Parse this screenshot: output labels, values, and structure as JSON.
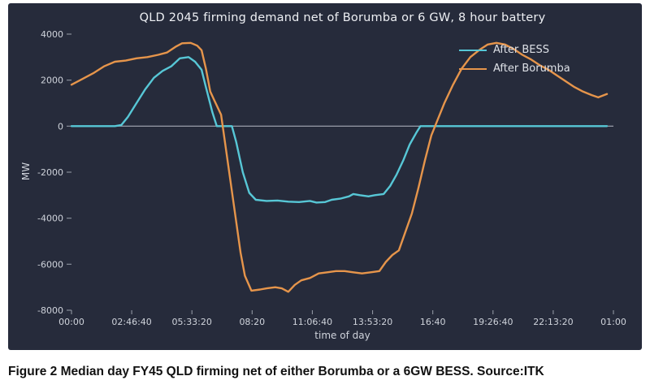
{
  "figure": {
    "caption": "Figure 2 Median day FY45 QLD firming net of either Borumba or a 6GW BESS. Source:ITK"
  },
  "chart_data": {
    "type": "line",
    "title": "QLD 2045 firming demand net of Borumba or 6 GW, 8 hour battery",
    "xlabel": "time of day",
    "ylabel": "MW",
    "xlim_hours": [
      0,
      25
    ],
    "ylim": [
      -8000,
      4000
    ],
    "background": "#262b3b",
    "text_color": "#cfd3db",
    "axis_color": "#9aa0ab",
    "zero_line_color": "#a7abb5",
    "grid": "off",
    "legend_position": "top-right",
    "y_ticks": [
      4000,
      2000,
      0,
      -2000,
      -4000,
      -6000,
      -8000
    ],
    "x_ticks": [
      {
        "hours": 0,
        "label": "00:00"
      },
      {
        "hours": 2.77778,
        "label": "02:46:40"
      },
      {
        "hours": 5.55556,
        "label": "05:33:20"
      },
      {
        "hours": 8.33333,
        "label": "08:20"
      },
      {
        "hours": 11.11111,
        "label": "11:06:40"
      },
      {
        "hours": 13.88889,
        "label": "13:53:20"
      },
      {
        "hours": 16.66667,
        "label": "16:40"
      },
      {
        "hours": 19.44444,
        "label": "19:26:40"
      },
      {
        "hours": 22.22222,
        "label": "22:13:20"
      },
      {
        "hours": 25,
        "label": "01:00"
      }
    ],
    "series": [
      {
        "name": "After BESS",
        "color": "#57c7d6",
        "points": [
          [
            0,
            0
          ],
          [
            0.5,
            0
          ],
          [
            1,
            0
          ],
          [
            1.5,
            0
          ],
          [
            2,
            0
          ],
          [
            2.3,
            50
          ],
          [
            2.6,
            400
          ],
          [
            3,
            1000
          ],
          [
            3.4,
            1600
          ],
          [
            3.8,
            2100
          ],
          [
            4.2,
            2400
          ],
          [
            4.6,
            2600
          ],
          [
            5,
            2950
          ],
          [
            5.4,
            3000
          ],
          [
            5.7,
            2800
          ],
          [
            6,
            2450
          ],
          [
            6.2,
            1700
          ],
          [
            6.5,
            600
          ],
          [
            6.7,
            0
          ],
          [
            7,
            0
          ],
          [
            7.4,
            0
          ],
          [
            7.6,
            -700
          ],
          [
            7.9,
            -2000
          ],
          [
            8.2,
            -2900
          ],
          [
            8.5,
            -3200
          ],
          [
            9,
            -3250
          ],
          [
            9.5,
            -3230
          ],
          [
            10,
            -3280
          ],
          [
            10.5,
            -3300
          ],
          [
            11,
            -3250
          ],
          [
            11.3,
            -3320
          ],
          [
            11.7,
            -3300
          ],
          [
            12,
            -3200
          ],
          [
            12.4,
            -3150
          ],
          [
            12.8,
            -3050
          ],
          [
            13,
            -2950
          ],
          [
            13.3,
            -3000
          ],
          [
            13.7,
            -3050
          ],
          [
            14,
            -3000
          ],
          [
            14.4,
            -2950
          ],
          [
            14.7,
            -2600
          ],
          [
            15,
            -2100
          ],
          [
            15.3,
            -1500
          ],
          [
            15.6,
            -800
          ],
          [
            15.9,
            -300
          ],
          [
            16.1,
            0
          ],
          [
            16.5,
            0
          ],
          [
            17,
            0
          ],
          [
            18,
            0
          ],
          [
            19,
            0
          ],
          [
            20,
            0
          ],
          [
            21,
            0
          ],
          [
            22,
            0
          ],
          [
            23,
            0
          ],
          [
            24,
            0
          ],
          [
            24.7,
            0
          ]
        ]
      },
      {
        "name": "After Borumba",
        "color": "#e6954b",
        "points": [
          [
            0,
            1800
          ],
          [
            0.5,
            2050
          ],
          [
            1,
            2300
          ],
          [
            1.5,
            2600
          ],
          [
            2,
            2800
          ],
          [
            2.5,
            2850
          ],
          [
            3,
            2950
          ],
          [
            3.5,
            3000
          ],
          [
            4,
            3100
          ],
          [
            4.4,
            3200
          ],
          [
            4.8,
            3450
          ],
          [
            5.1,
            3600
          ],
          [
            5.5,
            3620
          ],
          [
            5.8,
            3500
          ],
          [
            6,
            3300
          ],
          [
            6.2,
            2500
          ],
          [
            6.4,
            1500
          ],
          [
            6.6,
            1100
          ],
          [
            6.9,
            500
          ],
          [
            7.2,
            -1500
          ],
          [
            7.5,
            -3500
          ],
          [
            7.8,
            -5500
          ],
          [
            8,
            -6500
          ],
          [
            8.3,
            -7150
          ],
          [
            8.7,
            -7100
          ],
          [
            9,
            -7050
          ],
          [
            9.4,
            -7000
          ],
          [
            9.7,
            -7050
          ],
          [
            10,
            -7200
          ],
          [
            10.3,
            -6900
          ],
          [
            10.6,
            -6700
          ],
          [
            11,
            -6600
          ],
          [
            11.4,
            -6400
          ],
          [
            11.8,
            -6350
          ],
          [
            12.2,
            -6300
          ],
          [
            12.6,
            -6300
          ],
          [
            13,
            -6350
          ],
          [
            13.4,
            -6400
          ],
          [
            13.8,
            -6350
          ],
          [
            14.2,
            -6300
          ],
          [
            14.5,
            -5900
          ],
          [
            14.8,
            -5600
          ],
          [
            15.1,
            -5400
          ],
          [
            15.4,
            -4600
          ],
          [
            15.7,
            -3800
          ],
          [
            16,
            -2700
          ],
          [
            16.3,
            -1500
          ],
          [
            16.6,
            -400
          ],
          [
            16.9,
            300
          ],
          [
            17.2,
            1000
          ],
          [
            17.6,
            1800
          ],
          [
            18,
            2500
          ],
          [
            18.4,
            3000
          ],
          [
            18.8,
            3300
          ],
          [
            19.2,
            3550
          ],
          [
            19.6,
            3620
          ],
          [
            20,
            3550
          ],
          [
            20.4,
            3350
          ],
          [
            20.8,
            3100
          ],
          [
            21.2,
            2900
          ],
          [
            21.6,
            2650
          ],
          [
            22,
            2450
          ],
          [
            22.4,
            2200
          ],
          [
            22.8,
            1950
          ],
          [
            23.2,
            1700
          ],
          [
            23.6,
            1500
          ],
          [
            24,
            1350
          ],
          [
            24.3,
            1250
          ],
          [
            24.7,
            1400
          ]
        ]
      }
    ]
  }
}
